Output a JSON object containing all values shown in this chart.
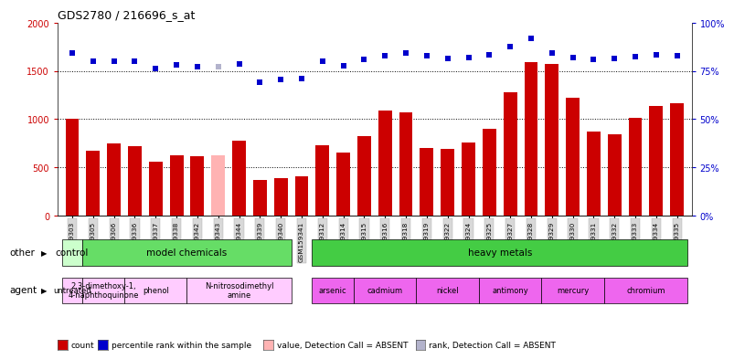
{
  "title": "GDS2780 / 216696_s_at",
  "samples": [
    "GSM159303",
    "GSM159305",
    "GSM159306",
    "GSM159336",
    "GSM159337",
    "GSM159338",
    "GSM159342",
    "GSM159343",
    "GSM159344",
    "GSM159339",
    "GSM159340",
    "GSM159341",
    "GSM159312",
    "GSM159314",
    "GSM159315",
    "GSM159316",
    "GSM159318",
    "GSM159319",
    "GSM159322",
    "GSM159324",
    "GSM159325",
    "GSM159327",
    "GSM159328",
    "GSM159329",
    "GSM159330",
    "GSM159331",
    "GSM159332",
    "GSM159333",
    "GSM159334",
    "GSM159335"
  ],
  "bar_values": [
    1000,
    670,
    750,
    720,
    560,
    630,
    620,
    630,
    780,
    370,
    390,
    410,
    730,
    650,
    820,
    1090,
    1070,
    700,
    690,
    760,
    900,
    1280,
    1590,
    1570,
    1220,
    870,
    840,
    1010,
    1140,
    1170
  ],
  "bar_absent": [
    false,
    false,
    false,
    false,
    false,
    false,
    false,
    true,
    false,
    false,
    false,
    false,
    false,
    false,
    false,
    false,
    false,
    false,
    false,
    false,
    false,
    false,
    false,
    false,
    false,
    false,
    false,
    false,
    false,
    false
  ],
  "rank_values": [
    84.5,
    80,
    80,
    80,
    76.5,
    78,
    77,
    77,
    78.5,
    69,
    70.5,
    71,
    80,
    77.5,
    81,
    83,
    84.5,
    83,
    81.5,
    82,
    83.5,
    87.5,
    92,
    84.5,
    82,
    81,
    81.5,
    82.5,
    83.5,
    83
  ],
  "rank_absent": [
    false,
    false,
    false,
    false,
    false,
    false,
    false,
    true,
    false,
    false,
    false,
    false,
    false,
    false,
    false,
    false,
    false,
    false,
    false,
    false,
    false,
    false,
    false,
    false,
    false,
    false,
    false,
    false,
    false,
    false
  ],
  "bar_color_normal": "#cc0000",
  "bar_color_absent": "#ffb3b3",
  "rank_color_normal": "#0000cc",
  "rank_color_absent": "#b3b3cc",
  "ylim_left": [
    0,
    2000
  ],
  "ylim_right": [
    0,
    100
  ],
  "yticks_left": [
    0,
    500,
    1000,
    1500,
    2000
  ],
  "yticks_right": [
    0,
    25,
    50,
    75,
    100
  ],
  "groups_other": [
    {
      "label": "control",
      "start": 0,
      "end": 1,
      "color": "#ccffcc"
    },
    {
      "label": "model chemicals",
      "start": 1,
      "end": 11,
      "color": "#66dd66"
    },
    {
      "label": "heavy metals",
      "start": 12,
      "end": 30,
      "color": "#44cc44"
    }
  ],
  "groups_agent": [
    {
      "label": "untreated",
      "start": 0,
      "end": 1,
      "color": "#ffccff"
    },
    {
      "label": "2,3-dimethoxy-1,\n4-naphthoquinone",
      "start": 1,
      "end": 3,
      "color": "#ffccff"
    },
    {
      "label": "phenol",
      "start": 3,
      "end": 6,
      "color": "#ffccff"
    },
    {
      "label": "N-nitrosodimethyl\namine",
      "start": 6,
      "end": 11,
      "color": "#ffccff"
    },
    {
      "label": "arsenic",
      "start": 12,
      "end": 14,
      "color": "#ee66ee"
    },
    {
      "label": "cadmium",
      "start": 14,
      "end": 17,
      "color": "#ee66ee"
    },
    {
      "label": "nickel",
      "start": 17,
      "end": 20,
      "color": "#ee66ee"
    },
    {
      "label": "antimony",
      "start": 20,
      "end": 23,
      "color": "#ee66ee"
    },
    {
      "label": "mercury",
      "start": 23,
      "end": 26,
      "color": "#ee66ee"
    },
    {
      "label": "chromium",
      "start": 26,
      "end": 30,
      "color": "#ee66ee"
    }
  ],
  "tick_label_fontsize": 5.5,
  "legend_items": [
    {
      "color": "#cc0000",
      "label": "count"
    },
    {
      "color": "#0000cc",
      "label": "percentile rank within the sample"
    },
    {
      "color": "#ffb3b3",
      "label": "value, Detection Call = ABSENT"
    },
    {
      "color": "#b3b3cc",
      "label": "rank, Detection Call = ABSENT"
    }
  ]
}
